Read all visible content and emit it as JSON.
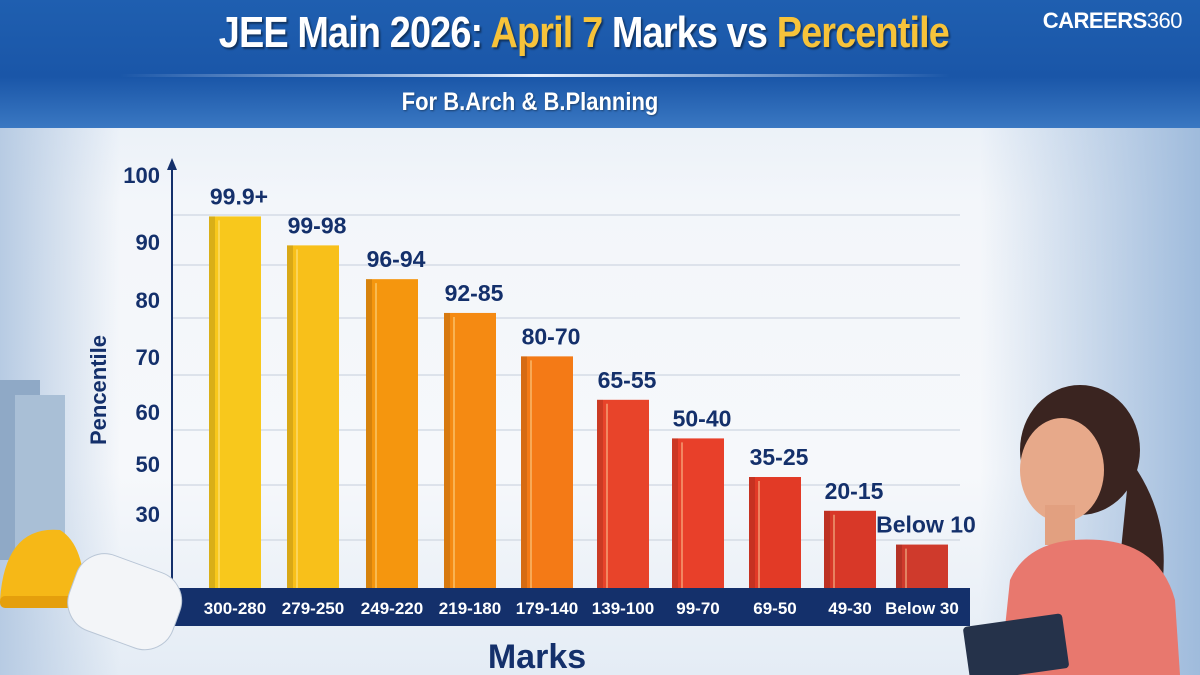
{
  "header": {
    "title_part1": "JEE Main 2026: ",
    "title_part2": "April 7",
    "title_part3": " Marks vs ",
    "title_part4": "Percentile",
    "subtitle": "For B.Arch & B.Planning",
    "logo_bold": "CAREERS",
    "logo_light": "360"
  },
  "chart_data": {
    "type": "bar",
    "title": "JEE Main 2026: April 7 Marks vs Percentile",
    "subtitle": "For B.Arch & B.Planning",
    "xlabel": "Marks",
    "ylabel": "Pencentile",
    "y_tick_labels": [
      "100",
      "90",
      "80",
      "70",
      "60",
      "50",
      "30"
    ],
    "categories": [
      "300-280",
      "279-250",
      "249-220",
      "219-180",
      "179-140",
      "139-100",
      "99-70",
      "69-50",
      "49-30",
      "Below 30"
    ],
    "bar_labels": [
      "99.9+",
      "99-98",
      "96-94",
      "92-85",
      "80-70",
      "65-55",
      "50-40",
      "35-25",
      "20-15",
      "Below 10"
    ],
    "values": [
      91,
      85,
      78,
      71,
      62,
      53,
      45,
      37,
      30,
      23
    ],
    "ylim": [
      14,
      100
    ],
    "grid": true,
    "legend": "none",
    "colors": [
      "#f8c81c",
      "#f8c01a",
      "#f5960e",
      "#f58a12",
      "#f47a16",
      "#e8442a",
      "#e8402a",
      "#e23a26",
      "#d83828",
      "#cf3a2c"
    ]
  }
}
